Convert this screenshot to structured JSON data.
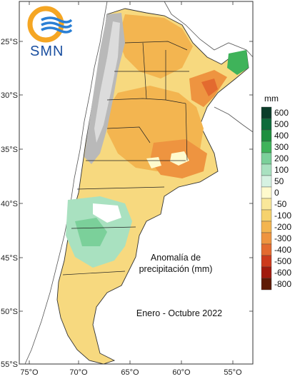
{
  "logo": {
    "text": "SMN"
  },
  "title": {
    "line1": "Anomalía de",
    "line2": "precipitación (mm)"
  },
  "period": "Enero - Octubre 2022",
  "lat_ticks": [
    "25°S",
    "30°S",
    "35°S",
    "40°S",
    "45°S",
    "50°S",
    "55°S"
  ],
  "lon_ticks": [
    "75°O",
    "70°O",
    "65°O",
    "60°O",
    "55°O"
  ],
  "legend": {
    "unit": "mm",
    "labels": [
      "600",
      "500",
      "400",
      "300",
      "200",
      "100",
      "50",
      "0",
      "-50",
      "-100",
      "-200",
      "-300",
      "-400",
      "-500",
      "-600",
      "-800"
    ],
    "colors": [
      "#0b3d2a",
      "#0d6b3b",
      "#1e8f3e",
      "#3fb35a",
      "#7bd09a",
      "#a9e1c0",
      "#d6f2e2",
      "#fffacd",
      "#f9e79a",
      "#f6d26d",
      "#f3b550",
      "#ee9440",
      "#e36a2f",
      "#cc3a1c",
      "#a11a0d",
      "#5e1a05"
    ]
  }
}
